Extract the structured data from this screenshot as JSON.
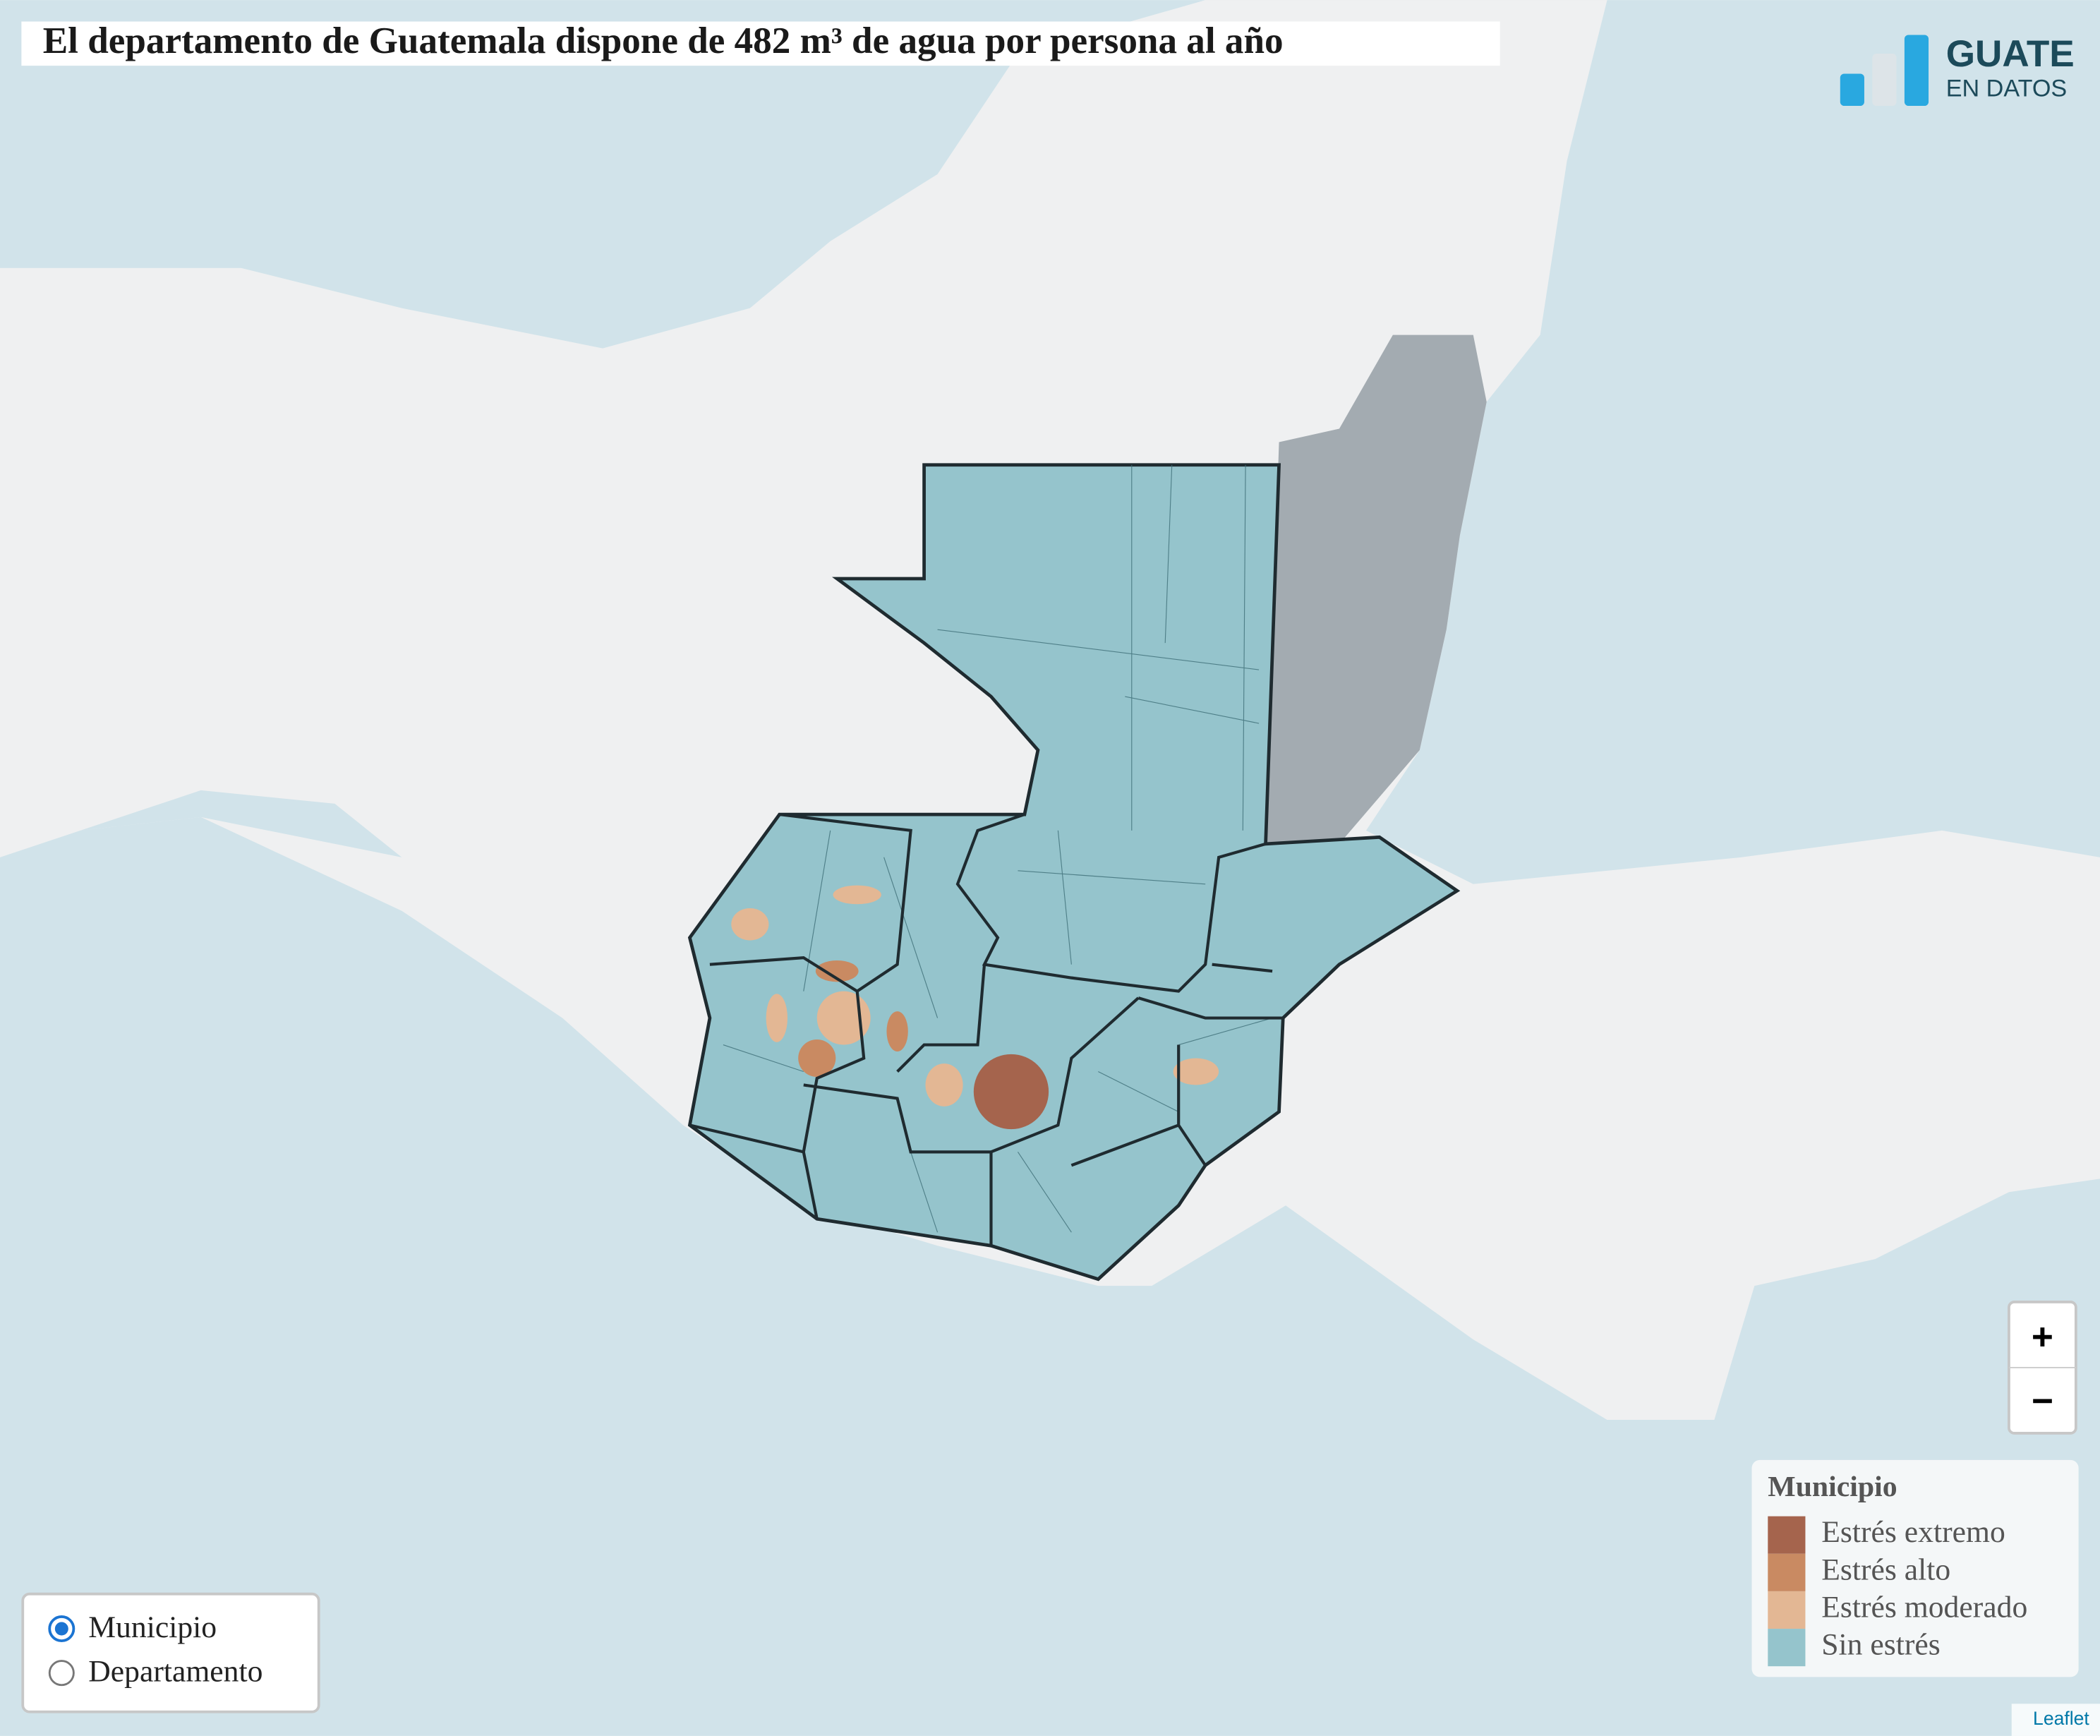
{
  "header": {
    "title": "El departamento de Guatemala dispone de 482 m³ de agua por persona al año"
  },
  "logo": {
    "line1": "GUATE",
    "line2": "EN DATOS"
  },
  "legend": {
    "title": "Municipio",
    "items": [
      "Estrés extremo",
      "Estrés alto",
      "Estrés moderado",
      "Sin estrés"
    ]
  },
  "layer_control": {
    "options": [
      "Municipio",
      "Departamento"
    ]
  },
  "zoom": {
    "in": "+",
    "out": "−"
  },
  "attribution": "Leaflet"
}
